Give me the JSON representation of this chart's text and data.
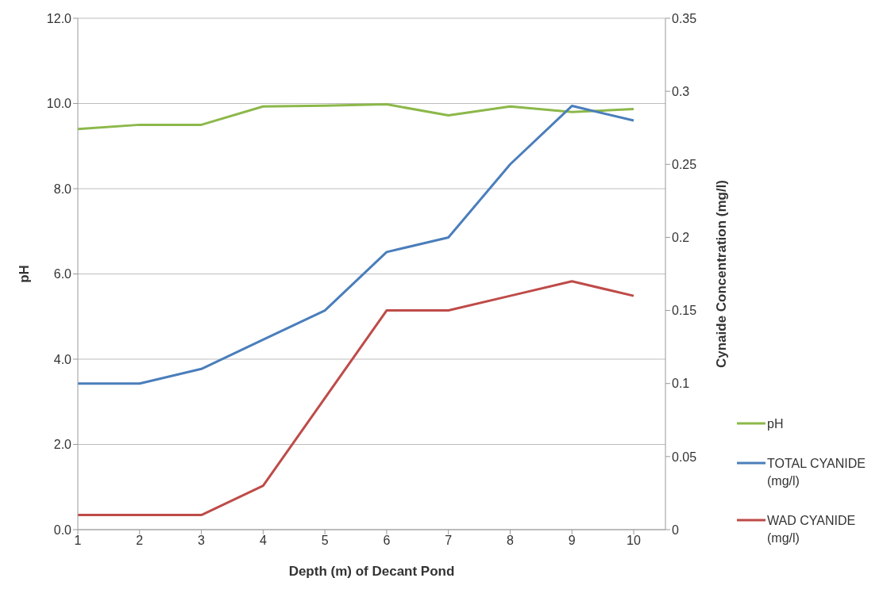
{
  "chart_data": {
    "type": "line",
    "xlabel": "Depth (m) of Decant Pond",
    "ylabel": "pH",
    "y2label": "Cynaide Concentration  (mg/l)",
    "categories": [
      "1",
      "2",
      "3",
      "4",
      "5",
      "6",
      "7",
      "8",
      "9",
      "10"
    ],
    "series": [
      {
        "name": "pH",
        "color": "#8cb84a",
        "values": [
          9.4,
          9.5,
          9.5,
          9.93,
          9.95,
          9.98,
          9.72,
          9.93,
          9.8,
          9.87
        ]
      },
      {
        "name": "TOTAL CYANIDE (mg/l)",
        "color": "#4a7ebb",
        "axis": "y2",
        "values": [
          0.1,
          0.1,
          0.11,
          0.13,
          0.15,
          0.19,
          0.2,
          0.25,
          0.29,
          0.28
        ]
      },
      {
        "name": "WAD CYANIDE (mg/l)",
        "color": "#be4b48",
        "axis": "y2",
        "values": [
          0.01,
          0.01,
          0.01,
          0.03,
          0.09,
          0.15,
          0.15,
          0.16,
          0.17,
          0.16
        ]
      }
    ],
    "ylim": [
      0,
      12
    ],
    "yticks": [
      {
        "value": 0,
        "label": "0.0"
      },
      {
        "value": 2,
        "label": "2.0"
      },
      {
        "value": 4,
        "label": "4.0"
      },
      {
        "value": 6,
        "label": "6.0"
      },
      {
        "value": 8,
        "label": "8.0"
      },
      {
        "value": 10,
        "label": "10.0"
      },
      {
        "value": 12,
        "label": "12.0"
      }
    ],
    "y2lim": [
      0,
      0.35
    ],
    "y2ticks": [
      0,
      0.05,
      0.1,
      0.15,
      0.2,
      0.25,
      0.3,
      0.35
    ],
    "grid": "y",
    "legend": "bottom right",
    "marker": "none",
    "line_style": "solid"
  }
}
